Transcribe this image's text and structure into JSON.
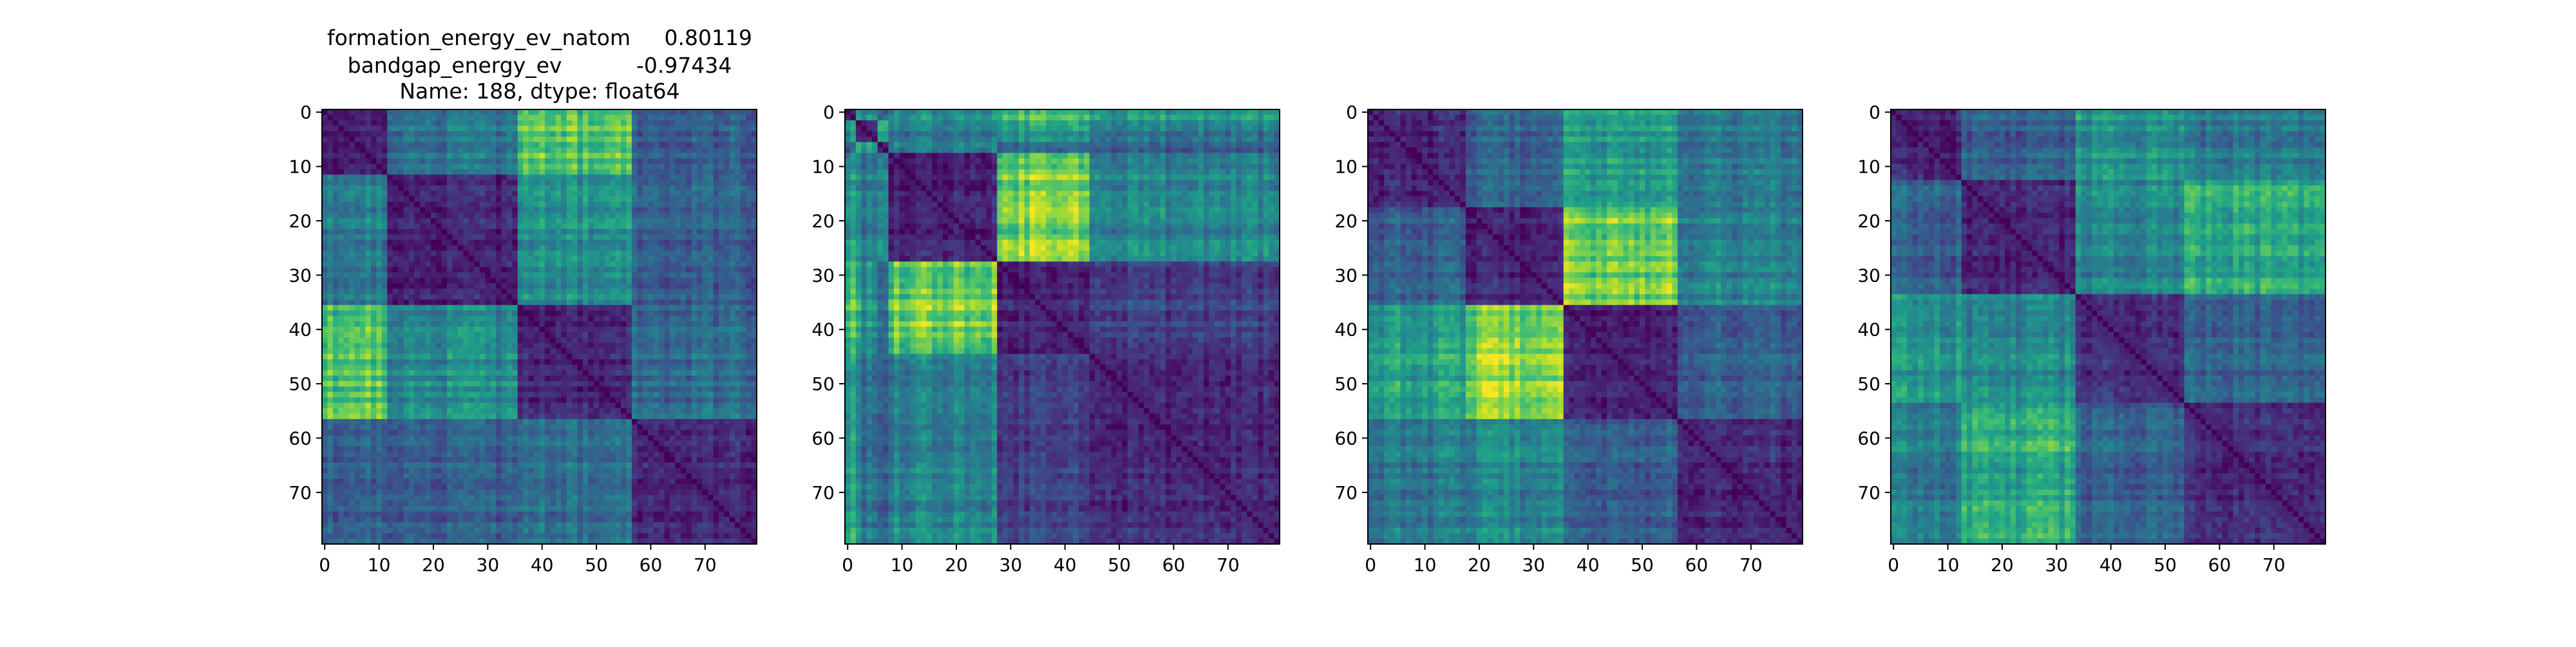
{
  "figure": {
    "title_lines": [
      "formation_energy_ev_natom     0.80119",
      "bandgap_energy_ev           -0.97434",
      "Name: 188, dtype: float64"
    ]
  },
  "chart_data": [
    {
      "type": "heatmap",
      "title": "",
      "xlabel": "",
      "ylabel": "",
      "size": 80,
      "colormap": "viridis",
      "xlim": [
        -0.5,
        79.5
      ],
      "ylim": [
        79.5,
        -0.5
      ],
      "xticks": [
        0,
        10,
        20,
        30,
        40,
        50,
        60,
        70
      ],
      "yticks": [
        0,
        10,
        20,
        30,
        40,
        50,
        60,
        70
      ],
      "blocks": [
        0,
        12,
        36,
        57,
        80
      ],
      "block_levels": [
        [
          0.1,
          0.4,
          0.72,
          0.3
        ],
        [
          0.4,
          0.1,
          0.48,
          0.3
        ],
        [
          0.72,
          0.48,
          0.1,
          0.35
        ],
        [
          0.3,
          0.3,
          0.35,
          0.12
        ]
      ]
    },
    {
      "type": "heatmap",
      "title": "",
      "xlabel": "",
      "ylabel": "",
      "size": 80,
      "colormap": "viridis",
      "xlim": [
        -0.5,
        79.5
      ],
      "ylim": [
        79.5,
        -0.5
      ],
      "xticks": [
        0,
        10,
        20,
        30,
        40,
        50,
        60,
        70
      ],
      "yticks": [
        0,
        10,
        20,
        30,
        40,
        50,
        60,
        70
      ],
      "blocks": [
        0,
        2,
        6,
        8,
        28,
        45,
        80
      ],
      "block_levels": [
        [
          0.12,
          0.5,
          0.3,
          0.5,
          0.7,
          0.55
        ],
        [
          0.5,
          0.1,
          0.6,
          0.4,
          0.55,
          0.4
        ],
        [
          0.3,
          0.6,
          0.1,
          0.45,
          0.35,
          0.3
        ],
        [
          0.5,
          0.4,
          0.45,
          0.1,
          0.8,
          0.45
        ],
        [
          0.7,
          0.55,
          0.35,
          0.8,
          0.12,
          0.2
        ],
        [
          0.55,
          0.4,
          0.3,
          0.45,
          0.2,
          0.12
        ]
      ]
    },
    {
      "type": "heatmap",
      "title": "",
      "xlabel": "",
      "ylabel": "",
      "size": 80,
      "colormap": "viridis",
      "xlim": [
        -0.5,
        79.5
      ],
      "ylim": [
        79.5,
        -0.5
      ],
      "xticks": [
        0,
        10,
        20,
        30,
        40,
        50,
        60,
        70
      ],
      "yticks": [
        0,
        10,
        20,
        30,
        40,
        50,
        60,
        70
      ],
      "blocks": [
        0,
        18,
        36,
        57,
        80
      ],
      "block_levels": [
        [
          0.1,
          0.3,
          0.55,
          0.4
        ],
        [
          0.3,
          0.1,
          0.8,
          0.45
        ],
        [
          0.55,
          0.8,
          0.1,
          0.3
        ],
        [
          0.4,
          0.45,
          0.3,
          0.12
        ]
      ]
    },
    {
      "type": "heatmap",
      "title": "",
      "xlabel": "",
      "ylabel": "",
      "size": 80,
      "colormap": "viridis",
      "xlim": [
        -0.5,
        79.5
      ],
      "ylim": [
        79.5,
        -0.5
      ],
      "xticks": [
        0,
        10,
        20,
        30,
        40,
        50,
        60,
        70
      ],
      "yticks": [
        0,
        10,
        20,
        30,
        40,
        50,
        60,
        70
      ],
      "blocks": [
        0,
        13,
        34,
        54,
        80
      ],
      "block_levels": [
        [
          0.1,
          0.3,
          0.5,
          0.4
        ],
        [
          0.3,
          0.1,
          0.45,
          0.6
        ],
        [
          0.5,
          0.45,
          0.12,
          0.3
        ],
        [
          0.4,
          0.6,
          0.3,
          0.12
        ]
      ]
    }
  ]
}
